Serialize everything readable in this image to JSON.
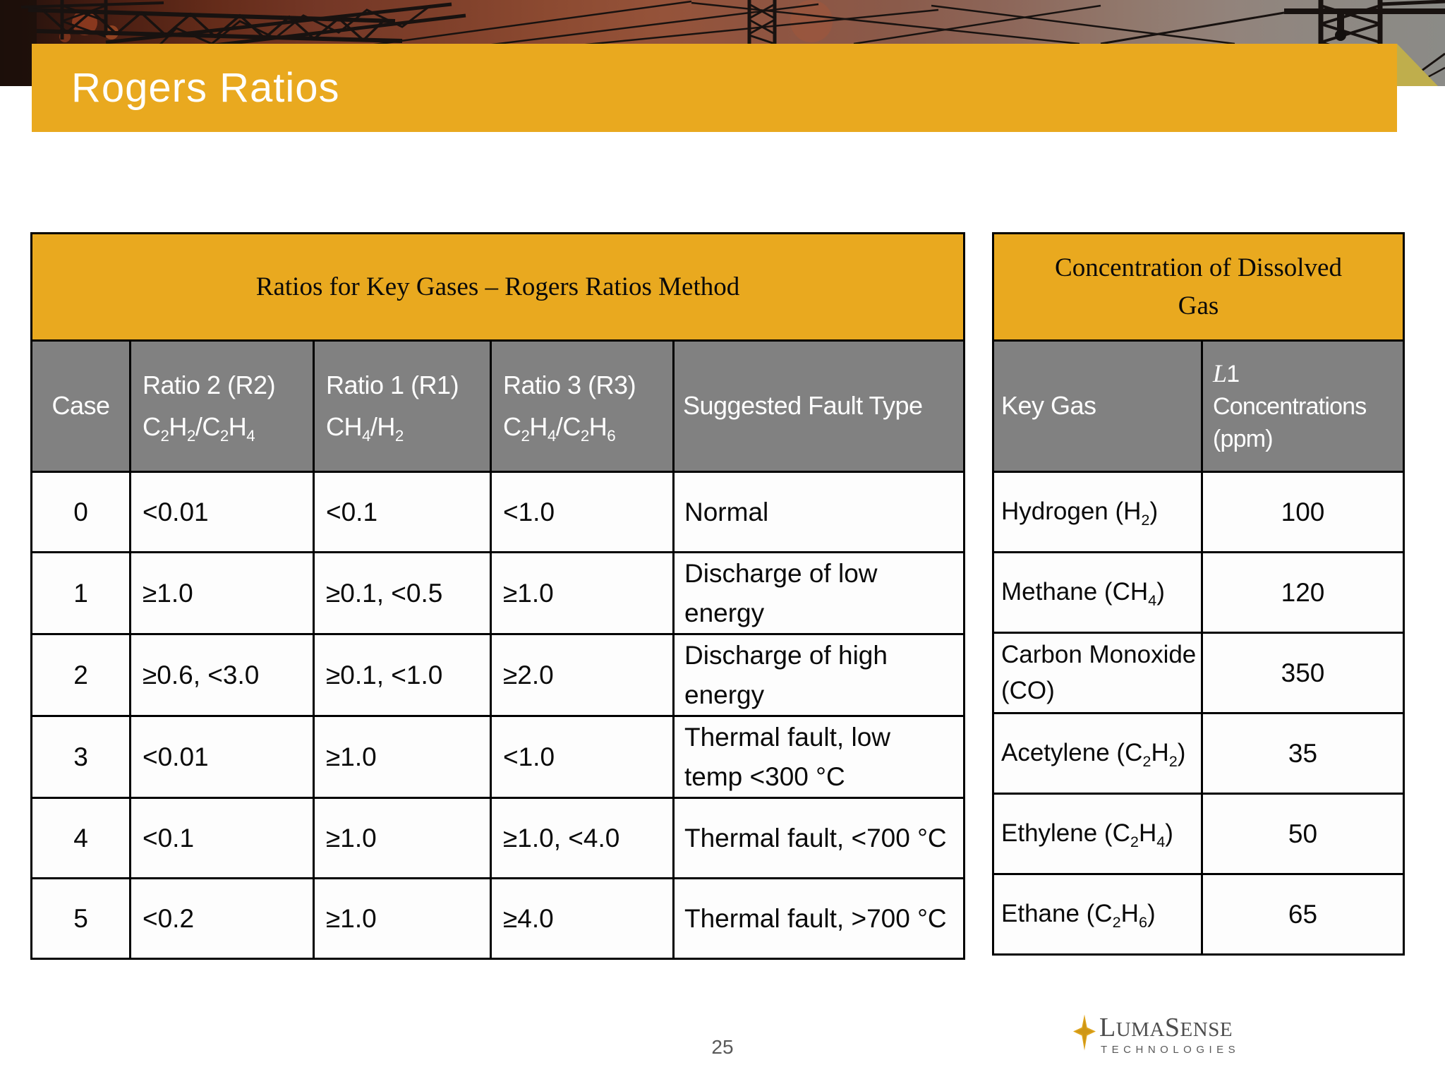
{
  "slide": {
    "title": "Rogers Ratios",
    "page_number": "25"
  },
  "colors": {
    "accent_yellow": "#E9A91F",
    "header_gray": "#818181",
    "fold_olive": "#BFAE4C",
    "border_black": "#000000",
    "footer_gray": "#595959",
    "logo_gold": "#DFA51D",
    "logo_gray": "#4D4D4D"
  },
  "icons": {
    "logo_star": "sparkle-icon",
    "header_photo": "transmission-towers-photo"
  },
  "ratios_table": {
    "title": "Ratios for Key Gases – Rogers Ratios Method",
    "columns": [
      {
        "line1": "Case",
        "formula": ""
      },
      {
        "line1": "Ratio 2 (R2)",
        "formula": "C_2H_2/C_2H_4"
      },
      {
        "line1": "Ratio 1 (R1)",
        "formula": "CH_4/H_2"
      },
      {
        "line1": "Ratio 3 (R3)",
        "formula": "C_2H_4/C_2H_6"
      },
      {
        "line1": "Suggested Fault Type",
        "formula": ""
      }
    ],
    "rows": [
      {
        "case": "0",
        "r2": "<0.01",
        "r1": "<0.1",
        "r3": "<1.0",
        "fault": "Normal"
      },
      {
        "case": "1",
        "r2": "≥1.0",
        "r1": "≥0.1, <0.5",
        "r3": "≥1.0",
        "fault": "Discharge of low energy"
      },
      {
        "case": "2",
        "r2": "≥0.6, <3.0",
        "r1": "≥0.1, <1.0",
        "r3": "≥2.0",
        "fault": "Discharge of high energy"
      },
      {
        "case": "3",
        "r2": "<0.01",
        "r1": "≥1.0",
        "r3": "<1.0",
        "fault": "Thermal fault, low temp <300 °C"
      },
      {
        "case": "4",
        "r2": "<0.1",
        "r1": "≥1.0",
        "r3": "≥1.0, <4.0",
        "fault": "Thermal fault, <700 °C"
      },
      {
        "case": "5",
        "r2": "<0.2",
        "r1": "≥1.0",
        "r3": "≥4.0",
        "fault": "Thermal fault, >700 °C"
      }
    ]
  },
  "concentration_table": {
    "title_line1": "Concentration of Dissolved",
    "title_line2": "Gas",
    "col1_header": "Key Gas",
    "col2_header": {
      "l1_italic": "L",
      "l1_rest": "1",
      "line2": "Concentrations",
      "line3": "(ppm)"
    },
    "rows": [
      {
        "gas": "Hydrogen (H_2)",
        "ppm": "100"
      },
      {
        "gas": "Methane (CH_4)",
        "ppm": "120"
      },
      {
        "gas": "Carbon Monoxide (CO)",
        "ppm": "350"
      },
      {
        "gas": "Acetylene (C_2H_2)",
        "ppm": "35"
      },
      {
        "gas": "Ethylene (C_2H_4)",
        "ppm": "50"
      },
      {
        "gas": "Ethane (C_2H_6)",
        "ppm": "65"
      }
    ]
  },
  "logo": {
    "word_parts": [
      "L",
      "UMA",
      "S",
      "ENSE"
    ],
    "subtitle": "TECHNOLOGIES"
  }
}
